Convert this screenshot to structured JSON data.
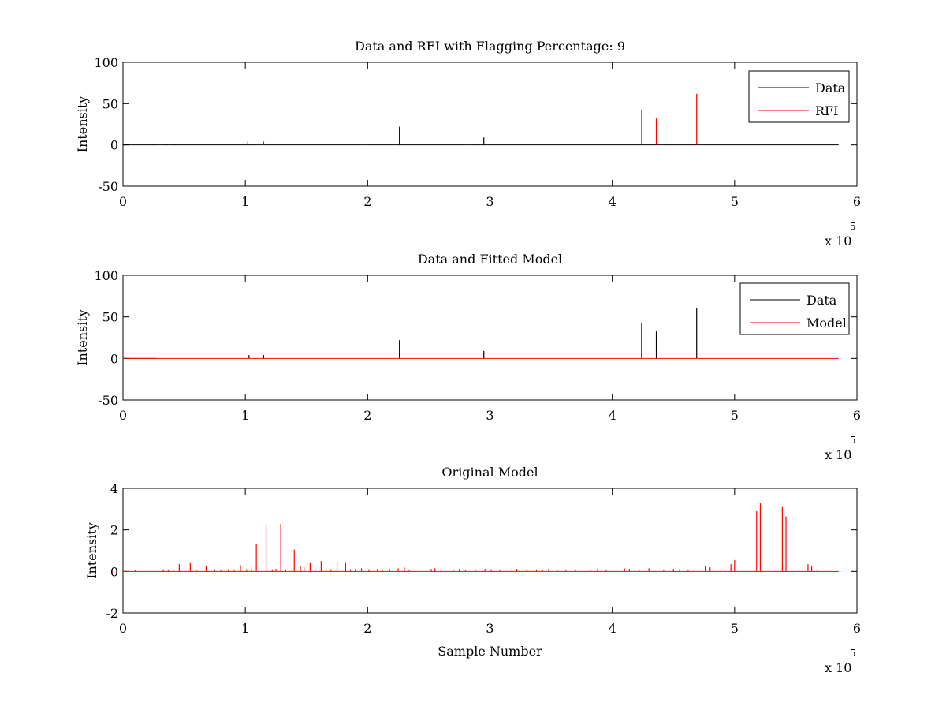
{
  "chart_data": [
    {
      "type": "line",
      "title": "Data and RFI with Flagging Percentage: 9",
      "xlabel": "",
      "ylabel": "Intensity",
      "xlim": [
        0,
        6
      ],
      "ylim": [
        -50,
        100
      ],
      "x_exponent": "5",
      "x_multiplier_label": "x 10",
      "xticks": [
        "0",
        "1",
        "2",
        "3",
        "4",
        "5",
        "6"
      ],
      "yticks": [
        "-50",
        "0",
        "50",
        "100"
      ],
      "legend": {
        "position": "top-right",
        "entries": [
          "Data",
          "RFI"
        ]
      },
      "series": [
        {
          "name": "Data",
          "color": "#000000",
          "baseline": [
            0,
            5.85
          ],
          "spikes": [
            [
              0.25,
              1
            ],
            [
              0.36,
              0.8
            ],
            [
              0.42,
              0.8
            ],
            [
              2.26,
              22
            ],
            [
              2.95,
              9
            ]
          ]
        },
        {
          "name": "RFI",
          "color": "#ff0000",
          "spikes": [
            [
              1.02,
              4
            ],
            [
              1.15,
              4
            ],
            [
              1.97,
              0.5
            ],
            [
              2.83,
              0.4
            ],
            [
              4.24,
              43
            ],
            [
              4.36,
              32
            ],
            [
              4.69,
              62
            ],
            [
              5.22,
              1.5
            ]
          ]
        }
      ]
    },
    {
      "type": "line",
      "title": "Data and Fitted Model",
      "xlabel": "",
      "ylabel": "Intensity",
      "xlim": [
        0,
        6
      ],
      "ylim": [
        -50,
        100
      ],
      "x_exponent": "5",
      "x_multiplier_label": "x 10",
      "xticks": [
        "0",
        "1",
        "2",
        "3",
        "4",
        "5",
        "6"
      ],
      "yticks": [
        "-50",
        "0",
        "50",
        "100"
      ],
      "legend": {
        "position": "top-right",
        "entries": [
          "Data",
          "Model"
        ]
      },
      "series": [
        {
          "name": "Data",
          "color": "#000000",
          "baseline": [
            0,
            0.27
          ],
          "spikes": [
            [
              1.03,
              4
            ],
            [
              1.15,
              4
            ],
            [
              2.26,
              22
            ],
            [
              2.95,
              9
            ],
            [
              4.24,
              42
            ],
            [
              4.36,
              33
            ],
            [
              4.69,
              61
            ]
          ]
        },
        {
          "name": "Model",
          "color": "#ff0000",
          "baseline": [
            0,
            5.85
          ],
          "spikes": []
        }
      ]
    },
    {
      "type": "line",
      "title": "Original Model",
      "xlabel": "Sample Number",
      "ylabel": "Intensity",
      "xlim": [
        0,
        6
      ],
      "ylim": [
        -2,
        4
      ],
      "x_exponent": "5",
      "x_multiplier_label": "x 10",
      "xticks": [
        "0",
        "1",
        "2",
        "3",
        "4",
        "5",
        "6"
      ],
      "yticks": [
        "-2",
        "0",
        "2",
        "4"
      ],
      "series": [
        {
          "color": "#ff0000",
          "baseline": [
            0,
            5.85
          ],
          "spikes": [
            [
              0.1,
              0.05
            ],
            [
              0.33,
              0.1
            ],
            [
              0.37,
              0.08
            ],
            [
              0.41,
              0.1
            ],
            [
              0.46,
              0.35
            ],
            [
              0.55,
              0.4
            ],
            [
              0.6,
              0.08
            ],
            [
              0.68,
              0.25
            ],
            [
              0.75,
              0.1
            ],
            [
              0.8,
              0.08
            ],
            [
              0.86,
              0.1
            ],
            [
              0.91,
              0.05
            ],
            [
              0.96,
              0.3
            ],
            [
              1.01,
              0.1
            ],
            [
              1.05,
              0.1
            ],
            [
              1.09,
              1.3
            ],
            [
              1.17,
              2.25
            ],
            [
              1.22,
              0.1
            ],
            [
              1.25,
              0.12
            ],
            [
              1.29,
              2.3
            ],
            [
              1.33,
              0.08
            ],
            [
              1.4,
              1.05
            ],
            [
              1.45,
              0.25
            ],
            [
              1.48,
              0.2
            ],
            [
              1.53,
              0.4
            ],
            [
              1.57,
              0.15
            ],
            [
              1.62,
              0.5
            ],
            [
              1.66,
              0.15
            ],
            [
              1.7,
              0.1
            ],
            [
              1.75,
              0.45
            ],
            [
              1.82,
              0.4
            ],
            [
              1.86,
              0.1
            ],
            [
              1.9,
              0.12
            ],
            [
              1.95,
              0.15
            ],
            [
              2.01,
              0.1
            ],
            [
              2.08,
              0.12
            ],
            [
              2.12,
              0.08
            ],
            [
              2.18,
              0.1
            ],
            [
              2.25,
              0.15
            ],
            [
              2.3,
              0.2
            ],
            [
              2.34,
              0.08
            ],
            [
              2.42,
              0.08
            ],
            [
              2.52,
              0.12
            ],
            [
              2.55,
              0.15
            ],
            [
              2.6,
              0.08
            ],
            [
              2.7,
              0.1
            ],
            [
              2.75,
              0.12
            ],
            [
              2.8,
              0.08
            ],
            [
              2.88,
              0.1
            ],
            [
              2.96,
              0.12
            ],
            [
              3.01,
              0.1
            ],
            [
              3.08,
              0.05
            ],
            [
              3.18,
              0.15
            ],
            [
              3.22,
              0.12
            ],
            [
              3.3,
              0.05
            ],
            [
              3.38,
              0.1
            ],
            [
              3.43,
              0.08
            ],
            [
              3.48,
              0.12
            ],
            [
              3.55,
              0.05
            ],
            [
              3.62,
              0.08
            ],
            [
              3.7,
              0.05
            ],
            [
              3.82,
              0.1
            ],
            [
              3.88,
              0.12
            ],
            [
              3.95,
              0.05
            ],
            [
              4.1,
              0.15
            ],
            [
              4.14,
              0.12
            ],
            [
              4.22,
              0.05
            ],
            [
              4.3,
              0.15
            ],
            [
              4.34,
              0.1
            ],
            [
              4.42,
              0.05
            ],
            [
              4.5,
              0.12
            ],
            [
              4.55,
              0.1
            ],
            [
              4.62,
              0.05
            ],
            [
              4.76,
              0.25
            ],
            [
              4.8,
              0.2
            ],
            [
              4.97,
              0.35
            ],
            [
              5.0,
              0.55
            ],
            [
              5.18,
              2.9
            ],
            [
              5.21,
              3.3
            ],
            [
              5.39,
              3.1
            ],
            [
              5.42,
              2.65
            ],
            [
              5.6,
              0.35
            ],
            [
              5.63,
              0.25
            ],
            [
              5.68,
              0.12
            ]
          ]
        }
      ]
    }
  ]
}
